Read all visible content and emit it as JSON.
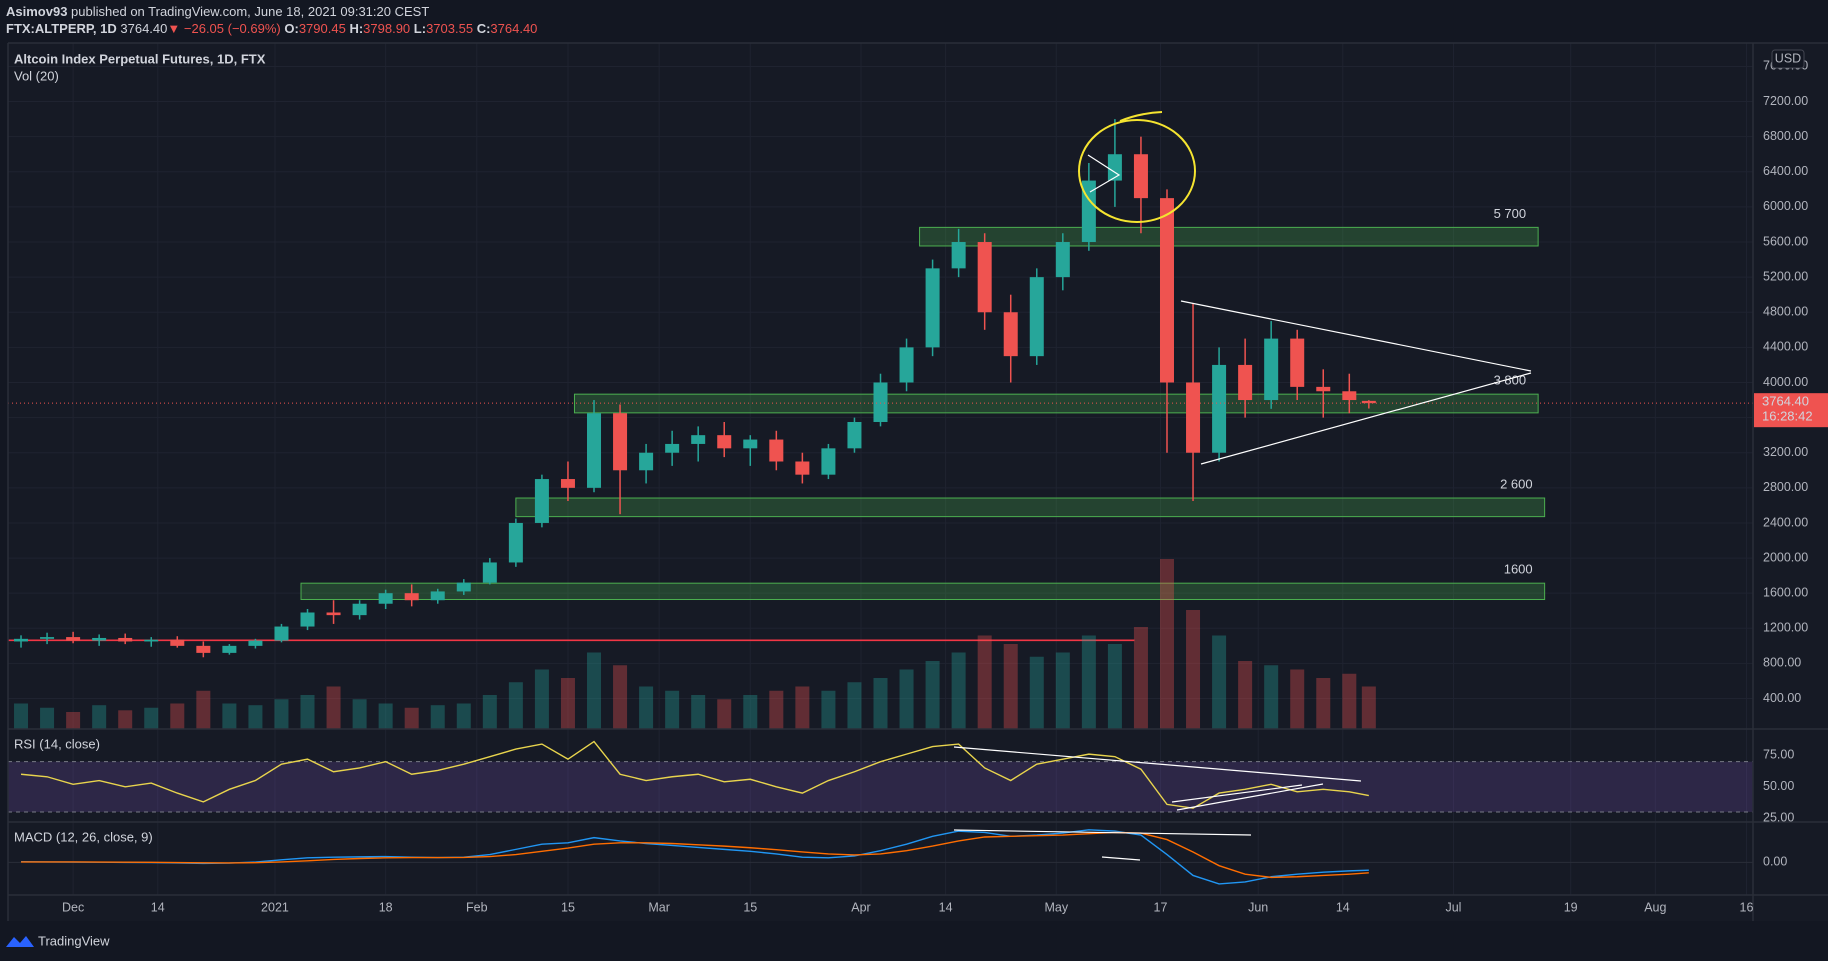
{
  "header": {
    "author": "Asimov93",
    "published": "published on TradingView.com, June 18, 2021 09:31:20 CEST",
    "symbol": "FTX:ALTPERP, 1D",
    "price": "3764.40",
    "arrow": "▼",
    "change": "−26.05 (−0.69%)",
    "ohlc": [
      {
        "k": "O:",
        "v": "3790.45"
      },
      {
        "k": "H:",
        "v": "3798.90"
      },
      {
        "k": "L:",
        "v": "3703.55"
      },
      {
        "k": "C:",
        "v": "3764.40"
      }
    ]
  },
  "chart_data": {
    "type": "candlestick",
    "title": "Altcoin Index Perpetual Futures, 1D, FTX",
    "subtitle": "Vol (20)",
    "x": [
      -8,
      -4,
      0,
      4,
      8,
      12,
      16,
      20,
      24,
      28,
      32,
      36,
      40,
      44,
      48,
      52,
      56,
      60,
      64,
      68,
      72,
      76,
      80,
      84,
      88,
      92,
      96,
      100,
      104,
      108,
      112,
      116,
      120,
      124,
      128,
      132,
      136,
      140,
      144,
      148,
      152,
      156,
      160,
      164,
      168,
      172,
      176,
      180,
      184,
      188,
      192,
      196,
      199
    ],
    "open": [
      1050,
      1080,
      1100,
      1060,
      1090,
      1050,
      1070,
      1000,
      920,
      1000,
      1060,
      1220,
      1380,
      1350,
      1480,
      1600,
      1520,
      1620,
      1720,
      1950,
      2400,
      2900,
      2800,
      3650,
      3000,
      3200,
      3300,
      3400,
      3250,
      3350,
      3100,
      2950,
      3250,
      3550,
      4000,
      4400,
      5300,
      5600,
      4800,
      4300,
      5200,
      5600,
      6300,
      6600,
      6100,
      4000,
      3200,
      4200,
      3800,
      4500,
      3950,
      3900,
      3790.45
    ],
    "high": [
      1120,
      1150,
      1160,
      1130,
      1140,
      1100,
      1110,
      1050,
      1020,
      1080,
      1250,
      1420,
      1520,
      1520,
      1640,
      1700,
      1650,
      1760,
      2000,
      2450,
      2950,
      3100,
      3800,
      3750,
      3300,
      3450,
      3500,
      3550,
      3400,
      3450,
      3200,
      3300,
      3600,
      4100,
      4500,
      5400,
      5750,
      5700,
      5000,
      5300,
      5700,
      6500,
      7000,
      6800,
      6200,
      4900,
      4400,
      4500,
      4700,
      4600,
      4150,
      4100,
      3798.9
    ],
    "low": [
      980,
      1020,
      1030,
      1000,
      1020,
      990,
      980,
      870,
      900,
      970,
      1040,
      1180,
      1250,
      1300,
      1420,
      1450,
      1480,
      1580,
      1700,
      1900,
      2350,
      2650,
      2750,
      2500,
      2850,
      3050,
      3100,
      3150,
      3050,
      3000,
      2850,
      2900,
      3200,
      3500,
      3900,
      4300,
      5200,
      4600,
      4000,
      4200,
      5050,
      5500,
      6000,
      5700,
      3200,
      2650,
      3100,
      3600,
      3700,
      3800,
      3600,
      3650,
      3703.55
    ],
    "close": [
      1080,
      1100,
      1060,
      1090,
      1050,
      1070,
      1000,
      920,
      1000,
      1060,
      1220,
      1380,
      1350,
      1480,
      1600,
      1520,
      1620,
      1720,
      1950,
      2400,
      2900,
      2800,
      3650,
      3000,
      3200,
      3300,
      3400,
      3250,
      3350,
      3100,
      2950,
      3250,
      3550,
      4000,
      4400,
      5300,
      5600,
      4800,
      4300,
      5200,
      5600,
      6300,
      6600,
      6100,
      4000,
      3200,
      4200,
      3800,
      4500,
      3950,
      3900,
      3800,
      3764.4
    ],
    "volume": [
      30,
      25,
      20,
      28,
      22,
      25,
      30,
      45,
      30,
      28,
      35,
      40,
      50,
      35,
      30,
      25,
      28,
      30,
      40,
      55,
      70,
      60,
      90,
      75,
      50,
      45,
      40,
      35,
      40,
      45,
      50,
      45,
      55,
      60,
      70,
      80,
      90,
      110,
      100,
      85,
      90,
      110,
      100,
      120,
      200,
      140,
      110,
      80,
      75,
      70,
      60,
      65,
      50
    ],
    "colors": {
      "up": "#26a69a",
      "down": "#ef5350"
    },
    "xlim": [
      -10,
      258
    ],
    "xticks": [
      {
        "value": 0,
        "label": "Dec"
      },
      {
        "value": 13,
        "label": "14"
      },
      {
        "value": 31,
        "label": "2021"
      },
      {
        "value": 48,
        "label": "18"
      },
      {
        "value": 62,
        "label": "Feb"
      },
      {
        "value": 76,
        "label": "15"
      },
      {
        "value": 90,
        "label": "Mar"
      },
      {
        "value": 104,
        "label": "15"
      },
      {
        "value": 121,
        "label": "Apr"
      },
      {
        "value": 134,
        "label": "14"
      },
      {
        "value": 151,
        "label": "May"
      },
      {
        "value": 167,
        "label": "17"
      },
      {
        "value": 182,
        "label": "Jun"
      },
      {
        "value": 195,
        "label": "14"
      },
      {
        "value": 212,
        "label": "Jul"
      },
      {
        "value": 230,
        "label": "19"
      },
      {
        "value": 243,
        "label": "Aug"
      },
      {
        "value": 257,
        "label": "16"
      }
    ],
    "ylim": [
      53,
      7867
    ],
    "yticks": [
      {
        "value": 400,
        "label": "400.00"
      },
      {
        "value": 800,
        "label": "800.00"
      },
      {
        "value": 1200,
        "label": "1200.00"
      },
      {
        "value": 1600,
        "label": "1600.00"
      },
      {
        "value": 2000,
        "label": "2000.00"
      },
      {
        "value": 2400,
        "label": "2400.00"
      },
      {
        "value": 2800,
        "label": "2800.00"
      },
      {
        "value": 3200,
        "label": "3200.00"
      },
      {
        "value": 3600,
        "label": "3600.00"
      },
      {
        "value": 4000,
        "label": "4000.00"
      },
      {
        "value": 4400,
        "label": "4400.00"
      },
      {
        "value": 4800,
        "label": "4800.00"
      },
      {
        "value": 5200,
        "label": "5200.00"
      },
      {
        "value": 5600,
        "label": "5600.00"
      },
      {
        "value": 6000,
        "label": "6000.00"
      },
      {
        "value": 6400,
        "label": "6400.00"
      },
      {
        "value": 6800,
        "label": "6800.00"
      },
      {
        "value": 7200,
        "label": "7200.00"
      },
      {
        "value": 7600,
        "label": "7600.00"
      }
    ],
    "currency": "USD",
    "last_price": {
      "value": 3764.4,
      "label": "3764.40"
    },
    "countdown": "16:28:42",
    "zones": [
      {
        "label": "5 700",
        "low": 5555,
        "high": 5767,
        "from": 130,
        "to": 225
      },
      {
        "label": "3 800",
        "low": 3654,
        "high": 3867,
        "from": 77,
        "to": 225
      },
      {
        "label": "2 600",
        "low": 2472,
        "high": 2684,
        "from": 68,
        "to": 226
      },
      {
        "label": "1600",
        "low": 1528,
        "high": 1714,
        "from": 35,
        "to": 226
      }
    ],
    "support_line": {
      "value": 1063,
      "from": -10,
      "to": 163,
      "color": "#f23645"
    },
    "rsi": {
      "title": "RSI (14, close)",
      "color": "#e8d44d",
      "values": [
        60,
        58,
        52,
        55,
        50,
        53,
        45,
        38,
        48,
        55,
        68,
        72,
        62,
        65,
        70,
        60,
        63,
        68,
        74,
        80,
        84,
        72,
        86,
        60,
        55,
        58,
        60,
        54,
        56,
        50,
        45,
        55,
        62,
        70,
        76,
        82,
        84,
        65,
        55,
        68,
        72,
        76,
        74,
        64,
        36,
        33,
        45,
        48,
        52,
        46,
        48,
        46,
        43
      ],
      "ylim": [
        22,
        96
      ],
      "bands": [
        30,
        70
      ],
      "yticks": [
        {
          "value": 75,
          "label": "75.00"
        },
        {
          "value": 50,
          "label": "50.00"
        },
        {
          "value": 25,
          "label": "25.00"
        }
      ]
    },
    "macd": {
      "title": "MACD (12, 26, close, 9)",
      "macd_color": "#2196f3",
      "signal_color": "#ff6d00",
      "macd": [
        10,
        8,
        5,
        3,
        0,
        -2,
        -8,
        -15,
        -10,
        5,
        40,
        70,
        80,
        85,
        90,
        80,
        75,
        80,
        120,
        200,
        280,
        300,
        380,
        330,
        290,
        260,
        230,
        200,
        170,
        130,
        80,
        70,
        100,
        180,
        280,
        400,
        480,
        460,
        400,
        420,
        450,
        500,
        480,
        420,
        120,
        -200,
        -330,
        -300,
        -220,
        -180,
        -150,
        -130,
        -120
      ],
      "signal": [
        8,
        8,
        7,
        5,
        3,
        1,
        -2,
        -6,
        -8,
        -4,
        8,
        25,
        45,
        60,
        70,
        75,
        75,
        77,
        90,
        120,
        170,
        220,
        280,
        300,
        300,
        290,
        270,
        250,
        225,
        195,
        160,
        130,
        115,
        130,
        180,
        250,
        330,
        390,
        400,
        410,
        420,
        440,
        460,
        450,
        350,
        160,
        -50,
        -180,
        -230,
        -220,
        -200,
        -180,
        -160
      ],
      "ylim": [
        -500,
        620
      ],
      "yticks": [
        {
          "value": 0,
          "label": "0.00"
        }
      ]
    },
    "brand": "TradingView"
  }
}
